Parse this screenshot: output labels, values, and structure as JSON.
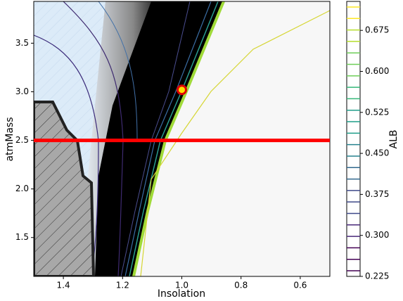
{
  "chart_data": {
    "type": "contour",
    "x_label": "Insolation",
    "y_label": "atmMass",
    "xlim": [
      1.5,
      0.5
    ],
    "ylim": [
      1.1,
      3.93
    ],
    "xticks": [
      1.4,
      1.2,
      {
        "value": 1,
        "label": "1.0"
      },
      0.8,
      0.6
    ],
    "yticks": [
      1.5,
      {
        "value": 2,
        "label": "2.0"
      },
      2.5,
      {
        "value": 3,
        "label": "3.0"
      },
      3.5
    ],
    "marker": {
      "x": 1,
      "y": 3.02
    },
    "hline": {
      "y": 2.5,
      "color": "#ff0000"
    },
    "colorbar": {
      "label": "ALB",
      "lim": [
        0.225,
        0.728
      ],
      "ticks": [
        0.225,
        {
          "value": 0.3,
          "label": "0.300"
        },
        0.375,
        {
          "value": 0.45,
          "label": "0.450"
        },
        0.525,
        {
          "value": 0.6,
          "label": "0.600"
        },
        0.675
      ]
    }
  }
}
